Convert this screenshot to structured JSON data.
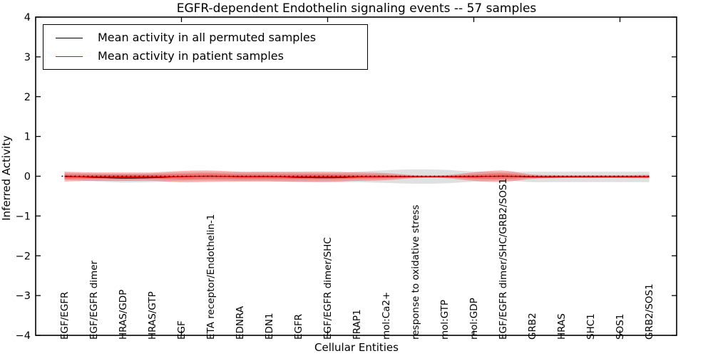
{
  "chart_data": {
    "type": "line",
    "title": "EGFR-dependent Endothelin signaling events -- 57 samples",
    "xlabel": "Cellular Entities",
    "ylabel": "Inferred Activity",
    "ylim": [
      -4,
      4
    ],
    "yticks": [
      "4",
      "3",
      "2",
      "1",
      "0",
      "−1",
      "−2",
      "−3",
      "−4"
    ],
    "xticks_unlabeled_positions": [
      5,
      10,
      15,
      20
    ],
    "grid": false,
    "legend_position": "upper left",
    "zero_reference_line": true,
    "categories": [
      "EGF/EGFR",
      "EGF/EGFR dimer",
      "HRAS/GDP",
      "HRAS/GTP",
      "EGF",
      "ETA receptor/Endothelin-1",
      "EDNRA",
      "EDN1",
      "EGFR",
      "EGF/EGFR dimer/SHC",
      "FRAP1",
      "mol:Ca2+",
      "response to oxidative stress",
      "mol:GTP",
      "mol:GDP",
      "EGF/EGFR dimer/SHC/GRB2/SOS1",
      "GRB2",
      "HRAS",
      "SHC1",
      "SOS1",
      "GRB2/SOS1"
    ],
    "series": [
      {
        "name": "permuted",
        "color": "#000000",
        "band_color_rgba": "rgba(0,0,0,0.12)",
        "mean": [
          0,
          -0.027,
          -0.045,
          -0.036,
          -0.009,
          0,
          -0.009,
          -0.009,
          -0.027,
          -0.036,
          -0.018,
          -0.009,
          -0.009,
          -0.009,
          -0.009,
          0,
          -0.018,
          -0.018,
          -0.018,
          -0.018,
          -0.018
        ],
        "band_halfwidth": [
          0.09,
          0.1,
          0.11,
          0.11,
          0.11,
          0.11,
          0.11,
          0.11,
          0.12,
          0.12,
          0.13,
          0.16,
          0.18,
          0.17,
          0.13,
          0.11,
          0.13,
          0.13,
          0.13,
          0.13,
          0.13
        ]
      },
      {
        "name": "patient",
        "color": "#ff0000",
        "band_color_rgba": "rgba(255,0,0,0.28)",
        "mean": [
          -0.01,
          -0.01,
          -0.01,
          -0.01,
          -0.01,
          0,
          -0.01,
          -0.01,
          -0.01,
          -0.01,
          -0.01,
          -0.01,
          -0.01,
          -0.01,
          -0.01,
          0,
          -0.01,
          -0.01,
          -0.01,
          -0.01,
          -0.01
        ],
        "band_halfwidth": [
          0.125,
          0.107,
          0.107,
          0.107,
          0.143,
          0.143,
          0.125,
          0.125,
          0.125,
          0.125,
          0.107,
          0.089,
          0.036,
          0.036,
          0.107,
          0.143,
          0.054,
          0.036,
          0.036,
          0.036,
          0.045
        ]
      }
    ],
    "legend": [
      {
        "label": "Mean activity in all permuted samples",
        "color": "#000000"
      },
      {
        "label": "Mean activity in patient samples",
        "color": "#ff0000"
      }
    ]
  }
}
